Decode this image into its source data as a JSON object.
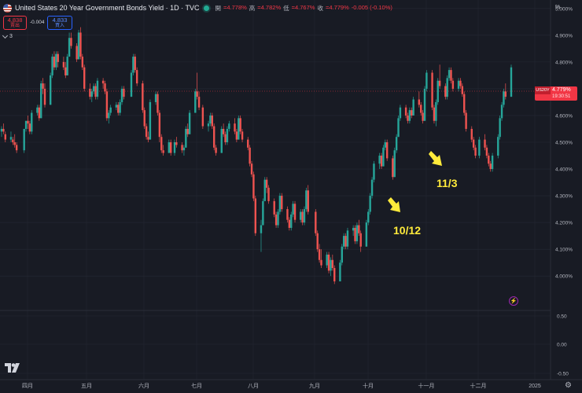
{
  "header": {
    "title": "United States 20 Year Government Bonds Yield · 1D · TVC",
    "ohlc": [
      {
        "label": "開",
        "value": "=4.778%"
      },
      {
        "label": "高",
        "value": "=4.782%"
      },
      {
        "label": "低",
        "value": "=4.767%"
      },
      {
        "label": "收",
        "value": "=4.779%"
      }
    ],
    "change": "-0.005 (-0.10%)",
    "flag_icon": "us-flag-icon",
    "status_color": "#22ab94"
  },
  "trade": {
    "sell_price": "4.838",
    "sell_label": "賣出",
    "spread": "-0.004",
    "buy_price": "4.833",
    "buy_label": "買入",
    "indicator_count": "3"
  },
  "price_axis": {
    "unit": "%",
    "labels": [
      "5.000%",
      "4.900%",
      "4.800%",
      "4.700%",
      "4.600%",
      "4.500%",
      "4.400%",
      "4.300%",
      "4.200%",
      "4.100%",
      "4.000%"
    ]
  },
  "price_tag": {
    "symbol": "US20Y",
    "price": "4.779%",
    "timer": "19:30:51",
    "color": "#f23645"
  },
  "indicator_axis": {
    "labels": [
      "0.50",
      "0.00",
      "-0.50"
    ]
  },
  "time_axis": {
    "labels": [
      "四月",
      "五月",
      "六月",
      "七月",
      "八月",
      "九月",
      "十月",
      "十一月",
      "十二月",
      "2025"
    ]
  },
  "annotations": [
    {
      "text": "10/12",
      "color": "#ffeb3b"
    },
    {
      "text": "11/3",
      "color": "#ffeb3b"
    }
  ],
  "colors": {
    "up": "#26a69a",
    "down": "#ef5350",
    "background": "#181b24",
    "grid": "#242833"
  },
  "chart_data": {
    "type": "candlestick",
    "series_name": "US20Y",
    "x_range": [
      "2024-03-20",
      "2025-01-02"
    ],
    "y_range": [
      3.93,
      5.02
    ],
    "y_unit": "%",
    "last_price": 4.779,
    "timeframe": "1D",
    "candles": [
      [
        "2024-03-20",
        4.54,
        4.56,
        4.52,
        4.55
      ],
      [
        "2024-03-21",
        4.55,
        4.57,
        4.53,
        4.54
      ],
      [
        "2024-03-22",
        4.53,
        4.54,
        4.5,
        4.51
      ],
      [
        "2024-03-25",
        4.51,
        4.54,
        4.5,
        4.52
      ],
      [
        "2024-03-26",
        4.51,
        4.52,
        4.49,
        4.5
      ],
      [
        "2024-03-27",
        4.5,
        4.53,
        4.48,
        4.49
      ],
      [
        "2024-03-28",
        4.49,
        4.5,
        4.46,
        4.47
      ],
      [
        "2024-04-01",
        4.47,
        4.55,
        4.46,
        4.55
      ],
      [
        "2024-04-02",
        4.55,
        4.58,
        4.54,
        4.58
      ],
      [
        "2024-04-03",
        4.58,
        4.6,
        4.55,
        4.57
      ],
      [
        "2024-04-04",
        4.57,
        4.58,
        4.53,
        4.54
      ],
      [
        "2024-04-05",
        4.54,
        4.62,
        4.53,
        4.61
      ],
      [
        "2024-04-08",
        4.61,
        4.64,
        4.6,
        4.63
      ],
      [
        "2024-04-09",
        4.63,
        4.64,
        4.58,
        4.59
      ],
      [
        "2024-04-10",
        4.59,
        4.73,
        4.59,
        4.72
      ],
      [
        "2024-04-11",
        4.72,
        4.74,
        4.68,
        4.7
      ],
      [
        "2024-04-12",
        4.7,
        4.72,
        4.63,
        4.64
      ],
      [
        "2024-04-15",
        4.64,
        4.76,
        4.64,
        4.75
      ],
      [
        "2024-04-16",
        4.75,
        4.83,
        4.74,
        4.82
      ],
      [
        "2024-04-17",
        4.82,
        4.84,
        4.77,
        4.78
      ],
      [
        "2024-04-18",
        4.78,
        4.84,
        4.77,
        4.83
      ],
      [
        "2024-04-19",
        4.83,
        4.84,
        4.78,
        4.8
      ],
      [
        "2024-04-22",
        4.8,
        4.82,
        4.77,
        4.78
      ],
      [
        "2024-04-23",
        4.78,
        4.8,
        4.74,
        4.75
      ],
      [
        "2024-04-24",
        4.75,
        4.83,
        4.75,
        4.82
      ],
      [
        "2024-04-25",
        4.82,
        4.91,
        4.82,
        4.89
      ],
      [
        "2024-04-26",
        4.89,
        4.91,
        4.85,
        4.86
      ],
      [
        "2024-04-29",
        4.86,
        4.87,
        4.8,
        4.81
      ],
      [
        "2024-04-30",
        4.81,
        4.92,
        4.81,
        4.91
      ],
      [
        "2024-05-01",
        4.91,
        4.93,
        4.81,
        4.82
      ],
      [
        "2024-05-02",
        4.82,
        4.83,
        4.77,
        4.78
      ],
      [
        "2024-05-03",
        4.78,
        4.79,
        4.69,
        4.7
      ],
      [
        "2024-05-06",
        4.7,
        4.72,
        4.66,
        4.67
      ],
      [
        "2024-05-07",
        4.67,
        4.7,
        4.65,
        4.69
      ],
      [
        "2024-05-08",
        4.69,
        4.72,
        4.68,
        4.71
      ],
      [
        "2024-05-09",
        4.71,
        4.72,
        4.66,
        4.67
      ],
      [
        "2024-05-10",
        4.67,
        4.74,
        4.66,
        4.73
      ],
      [
        "2024-05-13",
        4.73,
        4.74,
        4.7,
        4.72
      ],
      [
        "2024-05-14",
        4.72,
        4.73,
        4.68,
        4.69
      ],
      [
        "2024-05-15",
        4.69,
        4.7,
        4.58,
        4.59
      ],
      [
        "2024-05-16",
        4.59,
        4.62,
        4.57,
        4.61
      ],
      [
        "2024-05-17",
        4.61,
        4.64,
        4.6,
        4.63
      ],
      [
        "2024-05-20",
        4.63,
        4.65,
        4.62,
        4.64
      ],
      [
        "2024-05-21",
        4.64,
        4.65,
        4.6,
        4.61
      ],
      [
        "2024-05-22",
        4.61,
        4.66,
        4.6,
        4.65
      ],
      [
        "2024-05-23",
        4.65,
        4.71,
        4.64,
        4.7
      ],
      [
        "2024-05-24",
        4.7,
        4.71,
        4.66,
        4.67
      ],
      [
        "2024-05-28",
        4.67,
        4.77,
        4.67,
        4.76
      ],
      [
        "2024-05-29",
        4.76,
        4.83,
        4.75,
        4.82
      ],
      [
        "2024-05-30",
        4.82,
        4.83,
        4.76,
        4.77
      ],
      [
        "2024-05-31",
        4.77,
        4.78,
        4.71,
        4.72
      ],
      [
        "2024-06-03",
        4.72,
        4.73,
        4.61,
        4.62
      ],
      [
        "2024-06-04",
        4.62,
        4.63,
        4.55,
        4.56
      ],
      [
        "2024-06-05",
        4.56,
        4.57,
        4.51,
        4.52
      ],
      [
        "2024-06-06",
        4.52,
        4.54,
        4.5,
        4.51
      ],
      [
        "2024-06-07",
        4.51,
        4.66,
        4.51,
        4.65
      ],
      [
        "2024-06-10",
        4.65,
        4.69,
        4.64,
        4.68
      ],
      [
        "2024-06-11",
        4.68,
        4.69,
        4.6,
        4.61
      ],
      [
        "2024-06-12",
        4.61,
        4.62,
        4.5,
        4.52
      ],
      [
        "2024-06-13",
        4.52,
        4.53,
        4.46,
        4.47
      ],
      [
        "2024-06-14",
        4.47,
        4.49,
        4.45,
        4.46
      ],
      [
        "2024-06-17",
        4.46,
        4.51,
        4.46,
        4.5
      ],
      [
        "2024-06-18",
        4.5,
        4.51,
        4.45,
        4.46
      ],
      [
        "2024-06-20",
        4.46,
        4.51,
        4.45,
        4.5
      ],
      [
        "2024-06-21",
        4.5,
        4.52,
        4.48,
        4.49
      ],
      [
        "2024-06-24",
        4.49,
        4.5,
        4.46,
        4.47
      ],
      [
        "2024-06-25",
        4.47,
        4.49,
        4.45,
        4.48
      ],
      [
        "2024-06-26",
        4.48,
        4.56,
        4.48,
        4.55
      ],
      [
        "2024-06-27",
        4.55,
        4.57,
        4.52,
        4.53
      ],
      [
        "2024-06-28",
        4.53,
        4.62,
        4.53,
        4.61
      ],
      [
        "2024-07-01",
        4.61,
        4.7,
        4.61,
        4.69
      ],
      [
        "2024-07-02",
        4.69,
        4.76,
        4.66,
        4.67
      ],
      [
        "2024-07-03",
        4.67,
        4.69,
        4.62,
        4.63
      ],
      [
        "2024-07-05",
        4.63,
        4.64,
        4.55,
        4.56
      ],
      [
        "2024-07-08",
        4.56,
        4.58,
        4.54,
        4.57
      ],
      [
        "2024-07-09",
        4.57,
        4.61,
        4.56,
        4.6
      ],
      [
        "2024-07-10",
        4.6,
        4.61,
        4.55,
        4.56
      ],
      [
        "2024-07-11",
        4.56,
        4.57,
        4.47,
        4.48
      ],
      [
        "2024-07-12",
        4.48,
        4.49,
        4.45,
        4.46
      ],
      [
        "2024-07-15",
        4.46,
        4.56,
        4.46,
        4.55
      ],
      [
        "2024-07-16",
        4.55,
        4.57,
        4.52,
        4.53
      ],
      [
        "2024-07-17",
        4.53,
        4.54,
        4.49,
        4.5
      ],
      [
        "2024-07-18",
        4.5,
        4.56,
        4.49,
        4.55
      ],
      [
        "2024-07-19",
        4.55,
        4.58,
        4.54,
        4.57
      ],
      [
        "2024-07-22",
        4.57,
        4.59,
        4.53,
        4.54
      ],
      [
        "2024-07-23",
        4.54,
        4.55,
        4.5,
        4.51
      ],
      [
        "2024-07-24",
        4.51,
        4.6,
        4.51,
        4.59
      ],
      [
        "2024-07-25",
        4.59,
        4.6,
        4.53,
        4.54
      ],
      [
        "2024-07-26",
        4.54,
        4.55,
        4.5,
        4.51
      ],
      [
        "2024-07-29",
        4.51,
        4.52,
        4.47,
        4.48
      ],
      [
        "2024-07-30",
        4.48,
        4.49,
        4.41,
        4.42
      ],
      [
        "2024-07-31",
        4.42,
        4.43,
        4.37,
        4.38
      ],
      [
        "2024-08-01",
        4.38,
        4.39,
        4.28,
        4.29
      ],
      [
        "2024-08-02",
        4.29,
        4.3,
        4.15,
        4.16
      ],
      [
        "2024-08-05",
        4.16,
        4.21,
        4.09,
        4.19
      ],
      [
        "2024-08-06",
        4.19,
        4.29,
        4.19,
        4.28
      ],
      [
        "2024-08-07",
        4.28,
        4.37,
        4.28,
        4.36
      ],
      [
        "2024-08-08",
        4.36,
        4.37,
        4.31,
        4.33
      ],
      [
        "2024-08-09",
        4.33,
        4.34,
        4.27,
        4.28
      ],
      [
        "2024-08-12",
        4.28,
        4.29,
        4.22,
        4.23
      ],
      [
        "2024-08-13",
        4.23,
        4.24,
        4.18,
        4.19
      ],
      [
        "2024-08-14",
        4.19,
        4.25,
        4.18,
        4.24
      ],
      [
        "2024-08-15",
        4.24,
        4.31,
        4.23,
        4.3
      ],
      [
        "2024-08-16",
        4.3,
        4.31,
        4.24,
        4.25
      ],
      [
        "2024-08-19",
        4.25,
        4.26,
        4.2,
        4.21
      ],
      [
        "2024-08-20",
        4.21,
        4.22,
        4.17,
        4.18
      ],
      [
        "2024-08-21",
        4.18,
        4.24,
        4.17,
        4.23
      ],
      [
        "2024-08-22",
        4.23,
        4.28,
        4.22,
        4.27
      ],
      [
        "2024-08-23",
        4.27,
        4.28,
        4.2,
        4.21
      ],
      [
        "2024-08-26",
        4.21,
        4.25,
        4.2,
        4.24
      ],
      [
        "2024-08-27",
        4.24,
        4.25,
        4.19,
        4.2
      ],
      [
        "2024-08-28",
        4.2,
        4.26,
        4.19,
        4.25
      ],
      [
        "2024-08-29",
        4.25,
        4.33,
        4.24,
        4.32
      ],
      [
        "2024-08-30",
        4.32,
        4.34,
        4.23,
        4.24
      ],
      [
        "2024-09-03",
        4.24,
        4.25,
        4.15,
        4.16
      ],
      [
        "2024-09-04",
        4.16,
        4.17,
        4.09,
        4.1
      ],
      [
        "2024-09-05",
        4.1,
        4.12,
        4.05,
        4.06
      ],
      [
        "2024-09-06",
        4.06,
        4.1,
        4.03,
        4.04
      ],
      [
        "2024-09-09",
        4.04,
        4.09,
        4.03,
        4.08
      ],
      [
        "2024-09-10",
        4.08,
        4.09,
        4.01,
        4.02
      ],
      [
        "2024-09-11",
        4.02,
        4.07,
        4.0,
        4.06
      ],
      [
        "2024-09-12",
        4.06,
        4.08,
        4.02,
        4.03
      ],
      [
        "2024-09-13",
        4.03,
        4.04,
        3.97,
        3.98
      ],
      [
        "2024-09-16",
        3.98,
        4.06,
        3.98,
        4.05
      ],
      [
        "2024-09-17",
        4.05,
        4.12,
        4.04,
        4.11
      ],
      [
        "2024-09-18",
        4.11,
        4.16,
        4.1,
        4.15
      ],
      [
        "2024-09-19",
        4.15,
        4.16,
        4.1,
        4.11
      ],
      [
        "2024-09-20",
        4.11,
        4.18,
        4.1,
        4.17
      ],
      [
        "2024-09-23",
        4.17,
        4.19,
        4.15,
        4.18
      ],
      [
        "2024-09-24",
        4.18,
        4.19,
        4.12,
        4.13
      ],
      [
        "2024-09-25",
        4.13,
        4.2,
        4.12,
        4.19
      ],
      [
        "2024-09-26",
        4.19,
        4.21,
        4.15,
        4.16
      ],
      [
        "2024-09-27",
        4.16,
        4.17,
        4.09,
        4.11
      ],
      [
        "2024-09-30",
        4.11,
        4.21,
        4.11,
        4.2
      ],
      [
        "2024-10-01",
        4.2,
        4.25,
        4.19,
        4.24
      ],
      [
        "2024-10-02",
        4.24,
        4.31,
        4.23,
        4.3
      ],
      [
        "2024-10-03",
        4.3,
        4.37,
        4.29,
        4.36
      ],
      [
        "2024-10-04",
        4.36,
        4.43,
        4.35,
        4.42
      ],
      [
        "2024-10-07",
        4.42,
        4.46,
        4.4,
        4.45
      ],
      [
        "2024-10-08",
        4.45,
        4.46,
        4.4,
        4.41
      ],
      [
        "2024-10-09",
        4.41,
        4.49,
        4.41,
        4.48
      ],
      [
        "2024-10-10",
        4.48,
        4.51,
        4.47,
        4.5
      ],
      [
        "2024-10-11",
        4.5,
        4.51,
        4.43,
        4.44
      ],
      [
        "2024-10-14",
        4.44,
        4.45,
        4.36,
        4.37
      ],
      [
        "2024-10-15",
        4.37,
        4.48,
        4.37,
        4.47
      ],
      [
        "2024-10-16",
        4.47,
        4.53,
        4.46,
        4.52
      ],
      [
        "2024-10-17",
        4.52,
        4.6,
        4.52,
        4.59
      ],
      [
        "2024-10-18",
        4.59,
        4.64,
        4.58,
        4.63
      ],
      [
        "2024-10-21",
        4.63,
        4.64,
        4.59,
        4.6
      ],
      [
        "2024-10-22",
        4.6,
        4.61,
        4.57,
        4.58
      ],
      [
        "2024-10-23",
        4.58,
        4.63,
        4.57,
        4.62
      ],
      [
        "2024-10-24",
        4.62,
        4.63,
        4.59,
        4.6
      ],
      [
        "2024-10-25",
        4.6,
        4.67,
        4.6,
        4.66
      ],
      [
        "2024-10-28",
        4.66,
        4.69,
        4.63,
        4.64
      ],
      [
        "2024-10-29",
        4.64,
        4.65,
        4.6,
        4.61
      ],
      [
        "2024-10-30",
        4.61,
        4.62,
        4.57,
        4.58
      ],
      [
        "2024-10-31",
        4.58,
        4.71,
        4.58,
        4.7
      ],
      [
        "2024-11-01",
        4.7,
        4.77,
        4.69,
        4.76
      ],
      [
        "2024-11-04",
        4.76,
        4.77,
        4.62,
        4.63
      ],
      [
        "2024-11-05",
        4.63,
        4.64,
        4.57,
        4.58
      ],
      [
        "2024-11-06",
        4.58,
        4.66,
        4.56,
        4.65
      ],
      [
        "2024-11-07",
        4.65,
        4.74,
        4.64,
        4.73
      ],
      [
        "2024-11-08",
        4.73,
        4.79,
        4.7,
        4.71
      ],
      [
        "2024-11-11",
        4.71,
        4.72,
        4.66,
        4.67
      ],
      [
        "2024-11-12",
        4.67,
        4.75,
        4.66,
        4.74
      ],
      [
        "2024-11-13",
        4.74,
        4.78,
        4.73,
        4.77
      ],
      [
        "2024-11-14",
        4.77,
        4.78,
        4.72,
        4.73
      ],
      [
        "2024-11-15",
        4.73,
        4.74,
        4.69,
        4.7
      ],
      [
        "2024-11-18",
        4.7,
        4.74,
        4.69,
        4.73
      ],
      [
        "2024-11-19",
        4.73,
        4.74,
        4.7,
        4.71
      ],
      [
        "2024-11-20",
        4.71,
        4.72,
        4.67,
        4.68
      ],
      [
        "2024-11-21",
        4.68,
        4.69,
        4.6,
        4.61
      ],
      [
        "2024-11-22",
        4.61,
        4.62,
        4.54,
        4.55
      ],
      [
        "2024-11-25",
        4.55,
        4.56,
        4.5,
        4.51
      ],
      [
        "2024-11-26",
        4.51,
        4.52,
        4.47,
        4.48
      ],
      [
        "2024-11-27",
        4.48,
        4.49,
        4.44,
        4.45
      ],
      [
        "2024-11-29",
        4.45,
        4.52,
        4.44,
        4.51
      ],
      [
        "2024-12-02",
        4.51,
        4.53,
        4.47,
        4.48
      ],
      [
        "2024-12-03",
        4.48,
        4.49,
        4.44,
        4.45
      ],
      [
        "2024-12-04",
        4.45,
        4.46,
        4.41,
        4.42
      ],
      [
        "2024-12-05",
        4.42,
        4.43,
        4.39,
        4.4
      ],
      [
        "2024-12-06",
        4.4,
        4.46,
        4.39,
        4.45
      ],
      [
        "2024-12-09",
        4.45,
        4.53,
        4.44,
        4.52
      ],
      [
        "2024-12-10",
        4.52,
        4.6,
        4.51,
        4.59
      ],
      [
        "2024-12-11",
        4.59,
        4.65,
        4.58,
        4.64
      ],
      [
        "2024-12-12",
        4.64,
        4.7,
        4.63,
        4.69
      ],
      [
        "2024-12-13",
        4.69,
        4.72,
        4.66,
        4.67
      ],
      [
        "2024-12-16",
        4.67,
        4.79,
        4.67,
        4.78
      ]
    ]
  }
}
